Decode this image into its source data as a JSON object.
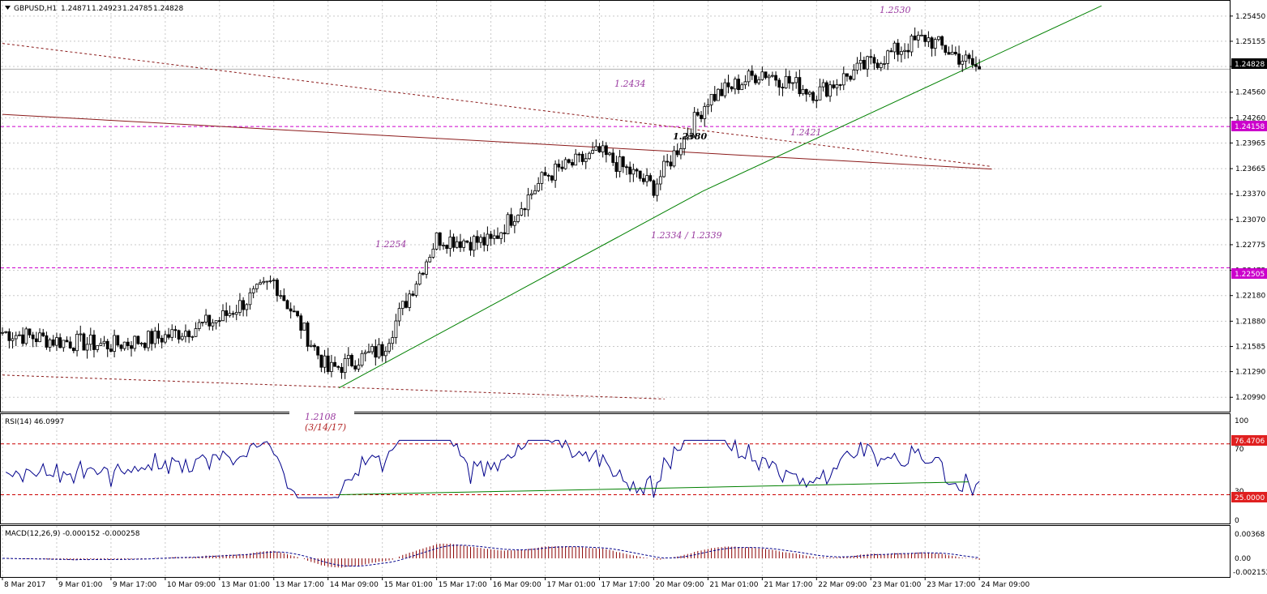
{
  "header": {
    "symbol": "GBPUSD,H1",
    "open": "1.24871",
    "high": "1.24923",
    "low": "1.24785",
    "close": "1.24828"
  },
  "price_axis": {
    "ticks": [
      "1.25450",
      "1.25155",
      "1.24860",
      "1.24560",
      "1.24260",
      "1.23965",
      "1.23665",
      "1.23370",
      "1.23070",
      "1.22775",
      "1.22475",
      "1.22180",
      "1.21880",
      "1.21585",
      "1.21290",
      "1.20990"
    ],
    "current_price": "1.24828",
    "level_1": "1.24158",
    "level_2": "1.22505"
  },
  "annotations": {
    "a1": "1.2530",
    "a2": "1.2434",
    "a3": "1.2380",
    "a4": "1.2421",
    "a5": "1.2334 / 1.2339",
    "a6": "1.2254",
    "a7": "1.2108",
    "a8": "(3/14/17)"
  },
  "rsi": {
    "label": "RSI(14) 46.0997",
    "ticks": [
      "100",
      "70",
      "30",
      "0"
    ],
    "upper": "76.4706",
    "lower": "25.0000"
  },
  "macd": {
    "label": "MACD(12,26,9) -0.000152 -0.000258",
    "ticks": [
      "0.00368",
      "0.00",
      "-0.002152"
    ]
  },
  "time_axis": {
    "labels": [
      "8 Mar 2017",
      "9 Mar 01:00",
      "9 Mar 17:00",
      "10 Mar 09:00",
      "13 Mar 01:00",
      "13 Mar 17:00",
      "14 Mar 09:00",
      "15 Mar 01:00",
      "15 Mar 17:00",
      "16 Mar 09:00",
      "17 Mar 01:00",
      "17 Mar 17:00",
      "20 Mar 09:00",
      "21 Mar 01:00",
      "21 Mar 17:00",
      "22 Mar 09:00",
      "23 Mar 01:00",
      "23 Mar 17:00",
      "24 Mar 09:00"
    ]
  },
  "colors": {
    "candle": "#000000",
    "trendline": "#008000",
    "channel": "#8b1a1a",
    "level": "#cc00cc",
    "annotation": "#9a3aa0",
    "rsi_line": "#00008b",
    "macd_hist": "#8b0000"
  },
  "chart_data": {
    "type": "candlestick",
    "symbol": "GBPUSD",
    "timeframe": "H1",
    "anchors": [
      [
        "8 Mar 2017",
        1.2175
      ],
      [
        "9 Mar 01:00",
        1.2165
      ],
      [
        "9 Mar 17:00",
        1.216
      ],
      [
        "10 Mar 09:00",
        1.217
      ],
      [
        "13 Mar 01:00",
        1.219
      ],
      [
        "13 Mar 17:00",
        1.2235
      ],
      [
        "14 Mar 09:00",
        1.213
      ],
      [
        "15 Mar 01:00",
        1.2155
      ],
      [
        "15 Mar 17:00",
        1.2285
      ],
      [
        "16 Mar 09:00",
        1.228
      ],
      [
        "17 Mar 01:00",
        1.2358
      ],
      [
        "17 Mar 17:00",
        1.2385
      ],
      [
        "20 Mar 09:00",
        1.2345
      ],
      [
        "21 Mar 01:00",
        1.2448
      ],
      [
        "21 Mar 17:00",
        1.248
      ],
      [
        "22 Mar 09:00",
        1.2455
      ],
      [
        "23 Mar 01:00",
        1.249
      ],
      [
        "23 Mar 17:00",
        1.252
      ],
      [
        "24 Mar 09:00",
        1.2483
      ]
    ],
    "ylim": [
      1.2085,
      1.256
    ],
    "levels": [
      1.24158,
      1.22505
    ],
    "rsi": {
      "period": 14,
      "last": 46.0997,
      "levels": [
        76.4706,
        25.0
      ],
      "ylim": [
        0,
        100
      ]
    },
    "macd": {
      "fast": 12,
      "slow": 26,
      "signal": 9,
      "last": -0.000152,
      "signal_last": -0.000258
    },
    "grid": true
  }
}
